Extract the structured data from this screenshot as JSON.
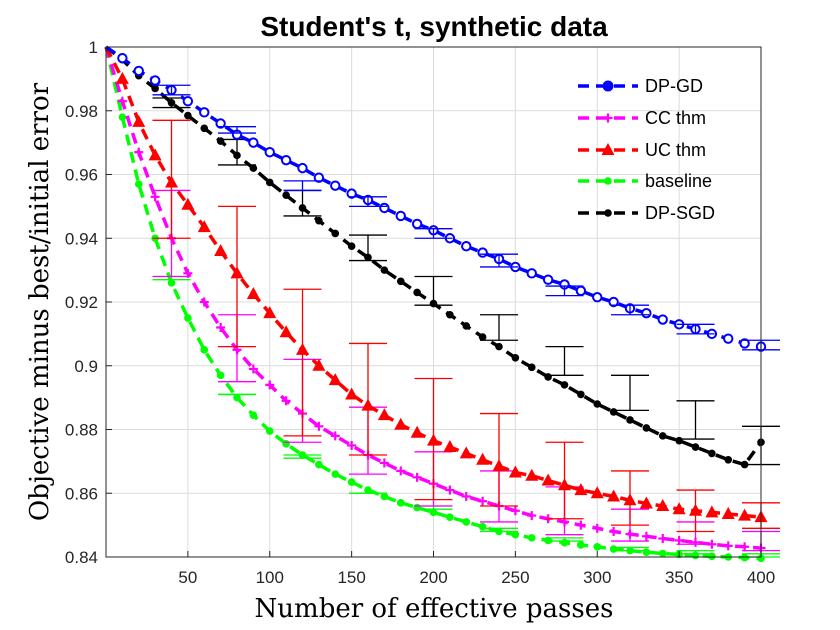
{
  "chart_data": {
    "type": "line",
    "title": "Student's t, synthetic data",
    "xlabel": "Number of effective passes",
    "ylabel": "Objective minus best/initial error",
    "xlim": [
      0,
      400
    ],
    "ylim": [
      0.84,
      1.0
    ],
    "xticks": [
      50,
      100,
      150,
      200,
      250,
      300,
      350,
      400
    ],
    "yticks": [
      0.84,
      0.86,
      0.88,
      0.9,
      0.92,
      0.94,
      0.96,
      0.98,
      1
    ],
    "ytick_labels": [
      "0.84",
      "0.86",
      "0.88",
      "0.9",
      "0.92",
      "0.94",
      "0.96",
      "0.98",
      "1"
    ],
    "grid": true,
    "legend_position": "top-right",
    "x": [
      0,
      10,
      20,
      30,
      40,
      50,
      60,
      70,
      80,
      90,
      100,
      110,
      120,
      130,
      140,
      150,
      160,
      170,
      180,
      190,
      200,
      210,
      220,
      230,
      240,
      250,
      260,
      270,
      280,
      290,
      300,
      310,
      320,
      330,
      340,
      350,
      360,
      370,
      380,
      390,
      400
    ],
    "error_x": [
      40,
      80,
      120,
      160,
      200,
      240,
      280,
      320,
      360,
      400
    ],
    "series": [
      {
        "name": "DP-GD",
        "color": "#0000ff",
        "marker": "circle",
        "values": [
          1.0,
          0.9965,
          0.9925,
          0.9895,
          0.9865,
          0.983,
          0.9795,
          0.976,
          0.9725,
          0.97,
          0.967,
          0.9645,
          0.962,
          0.959,
          0.9565,
          0.954,
          0.952,
          0.9495,
          0.947,
          0.9445,
          0.9425,
          0.94,
          0.9375,
          0.9355,
          0.9335,
          0.931,
          0.929,
          0.927,
          0.9255,
          0.9235,
          0.9215,
          0.92,
          0.918,
          0.9165,
          0.9145,
          0.913,
          0.9115,
          0.91,
          0.9085,
          0.907,
          0.906
        ],
        "err_low": [
          0.985,
          0.973,
          0.955,
          0.95,
          0.94,
          0.931,
          0.922,
          0.916,
          0.91,
          0.905
        ],
        "err_high": [
          0.988,
          0.975,
          0.958,
          0.953,
          0.943,
          0.935,
          0.925,
          0.919,
          0.913,
          0.908
        ]
      },
      {
        "name": "CC thm",
        "color": "#ff00ff",
        "marker": "plus",
        "values": [
          1.0,
          0.983,
          0.967,
          0.953,
          0.94,
          0.929,
          0.92,
          0.912,
          0.905,
          0.899,
          0.894,
          0.889,
          0.885,
          0.881,
          0.878,
          0.875,
          0.872,
          0.8695,
          0.867,
          0.865,
          0.863,
          0.861,
          0.859,
          0.8575,
          0.856,
          0.8545,
          0.853,
          0.852,
          0.851,
          0.85,
          0.849,
          0.848,
          0.8472,
          0.8465,
          0.8458,
          0.8452,
          0.8446,
          0.844,
          0.8435,
          0.8432,
          0.8428
        ],
        "err_low": [
          0.928,
          0.895,
          0.876,
          0.866,
          0.856,
          0.851,
          0.847,
          0.845,
          0.844,
          0.842
        ],
        "err_high": [
          0.955,
          0.916,
          0.902,
          0.887,
          0.873,
          0.867,
          0.862,
          0.855,
          0.851,
          0.848
        ]
      },
      {
        "name": "UC thm",
        "color": "#ff0000",
        "marker": "triangle",
        "values": [
          1.0,
          0.99,
          0.9765,
          0.966,
          0.9575,
          0.9505,
          0.9435,
          0.936,
          0.929,
          0.9225,
          0.9165,
          0.9105,
          0.905,
          0.9,
          0.8955,
          0.891,
          0.8875,
          0.8845,
          0.8815,
          0.879,
          0.8765,
          0.8745,
          0.8725,
          0.8705,
          0.8685,
          0.8665,
          0.8655,
          0.864,
          0.8625,
          0.861,
          0.86,
          0.859,
          0.8578,
          0.8568,
          0.856,
          0.855,
          0.8545,
          0.854,
          0.8535,
          0.853,
          0.8525
        ],
        "err_low": [
          0.94,
          0.906,
          0.878,
          0.872,
          0.858,
          0.856,
          0.852,
          0.85,
          0.848,
          0.849
        ],
        "err_high": [
          0.977,
          0.95,
          0.924,
          0.907,
          0.896,
          0.885,
          0.876,
          0.867,
          0.861,
          0.857
        ]
      },
      {
        "name": "baseline",
        "color": "#00ff00",
        "marker": "dot",
        "values": [
          1.0,
          0.978,
          0.957,
          0.94,
          0.926,
          0.915,
          0.905,
          0.897,
          0.89,
          0.8845,
          0.8795,
          0.8755,
          0.872,
          0.869,
          0.866,
          0.8635,
          0.861,
          0.859,
          0.857,
          0.8555,
          0.854,
          0.8525,
          0.851,
          0.8495,
          0.848,
          0.847,
          0.846,
          0.8452,
          0.8445,
          0.8438,
          0.8432,
          0.8425,
          0.842,
          0.8415,
          0.8411,
          0.8408,
          0.8405,
          0.8402,
          0.84,
          0.8398,
          0.8396
        ],
        "err_low": [
          0.927,
          0.891,
          0.871,
          0.86,
          0.855,
          0.848,
          0.845,
          0.842,
          0.841,
          0.84
        ],
        "err_high": [
          0.928,
          0.891,
          0.872,
          0.86,
          0.856,
          0.849,
          0.846,
          0.843,
          0.842,
          0.841
        ]
      },
      {
        "name": "DP-SGD",
        "color": "#000000",
        "marker": "dot",
        "values": [
          1.0,
          0.996,
          0.991,
          0.987,
          0.9825,
          0.9785,
          0.9745,
          0.9705,
          0.966,
          0.962,
          0.9575,
          0.9535,
          0.9495,
          0.9455,
          0.9415,
          0.9375,
          0.934,
          0.93,
          0.9265,
          0.923,
          0.9195,
          0.916,
          0.9125,
          0.909,
          0.906,
          0.9025,
          0.8995,
          0.8965,
          0.894,
          0.891,
          0.888,
          0.8855,
          0.883,
          0.8805,
          0.878,
          0.8765,
          0.8745,
          0.8725,
          0.8705,
          0.869,
          0.876
        ],
        "err_low": [
          0.981,
          0.963,
          0.947,
          0.933,
          0.919,
          0.908,
          0.897,
          0.886,
          0.877,
          0.869
        ],
        "err_high": [
          0.984,
          0.971,
          0.955,
          0.941,
          0.928,
          0.916,
          0.906,
          0.897,
          0.889,
          0.881
        ]
      }
    ]
  }
}
